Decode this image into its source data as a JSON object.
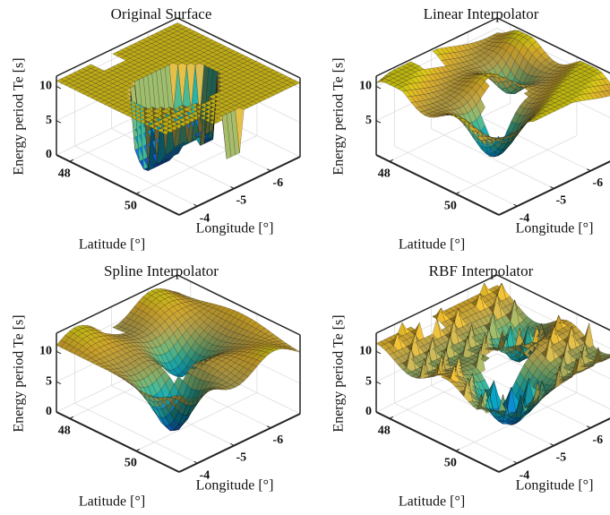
{
  "chart_data": [
    {
      "type": "surface3d",
      "title": "Original Surface",
      "zlabel": "Energy period Te [s]",
      "xlabel": "Longitude [°]",
      "ylabel": "Latitude [°]",
      "xlim": [
        -6.8,
        -3.5
      ],
      "xticks": [
        -6,
        -5,
        -4
      ],
      "ylim": [
        47.6,
        51.3
      ],
      "yticks": [
        48,
        50
      ],
      "zlim": [
        0,
        11.5
      ],
      "zticks": [
        0,
        5,
        10
      ]
    },
    {
      "type": "surface3d",
      "title": "Linear Interpolator",
      "zlabel": "Energy period Te [s]",
      "xlabel": "Longitude [°]",
      "ylabel": "Latitude [°]",
      "xlim": [
        -6.8,
        -3.5
      ],
      "xticks": [
        -6,
        -5,
        -4
      ],
      "ylim": [
        47.6,
        51.3
      ],
      "yticks": [
        48,
        50
      ],
      "zlim": [
        0,
        11.5
      ],
      "zticks": [
        5,
        10
      ]
    },
    {
      "type": "surface3d",
      "title": "Spline Interpolator",
      "zlabel": "Energy period Te [s]",
      "xlabel": "Longitude [°]",
      "ylabel": "Latitude [°]",
      "xlim": [
        -6.8,
        -3.5
      ],
      "xticks": [
        -6,
        -5,
        -4
      ],
      "ylim": [
        47.6,
        51.3
      ],
      "yticks": [
        48,
        50
      ],
      "zlim": [
        0,
        13
      ],
      "zticks": [
        0,
        5,
        10
      ]
    },
    {
      "type": "surface3d",
      "title": "RBF Interpolator",
      "zlabel": "Energy period Te [s]",
      "xlabel": "Longitude [°]",
      "ylabel": "Latitude [°]",
      "xlim": [
        -6.8,
        -3.5
      ],
      "xticks": [
        -6,
        -5,
        -4
      ],
      "ylim": [
        47.6,
        51.3
      ],
      "yticks": [
        48,
        50
      ],
      "zlim": [
        0,
        13
      ],
      "zticks": [
        0,
        5,
        10
      ]
    }
  ]
}
